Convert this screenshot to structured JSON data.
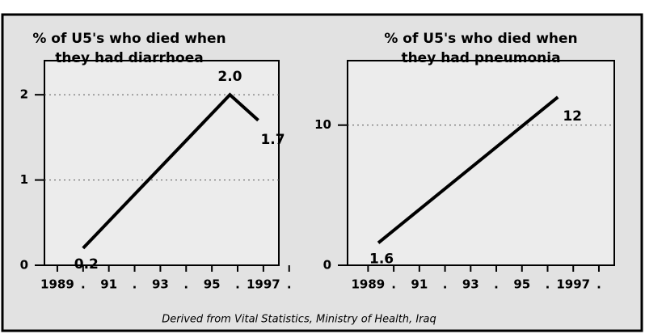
{
  "source": "Derived from Vital Statistics, Ministry of Health, Iraq",
  "chart_data": [
    {
      "type": "line",
      "title": [
        "% of U5's who died when",
        "they had diarrhoea"
      ],
      "x": [
        1990,
        1995.7,
        1996.8
      ],
      "series": [
        {
          "color": "#000000",
          "values": [
            0.2,
            2.0,
            1.7
          ],
          "value_labels": [
            "0.2",
            "2.0",
            "1.7"
          ]
        }
      ],
      "xlim": [
        1988.5,
        1997.6
      ],
      "xticks": [
        1989,
        {
          "value": 1990,
          "label": "."
        },
        {
          "value": 1991,
          "label": "91"
        },
        {
          "value": 1992,
          "label": "."
        },
        {
          "value": 1993,
          "label": "93"
        },
        {
          "value": 1994,
          "label": "."
        },
        {
          "value": 1995,
          "label": "95"
        },
        {
          "value": 1996,
          "label": "."
        },
        1997,
        {
          "value": 1998,
          "label": "."
        }
      ],
      "ylim": [
        0,
        2.4
      ],
      "yticks": [
        0,
        1,
        2
      ],
      "grid": true
    },
    {
      "type": "line",
      "title": [
        "% of U5's who died when",
        "they had pneumonia"
      ],
      "x": [
        1989.4,
        1996.4
      ],
      "series": [
        {
          "color": "#000000",
          "values": [
            1.6,
            12
          ]
        }
      ],
      "xlim": [
        1988.2,
        1998.6
      ],
      "xticks": [
        1989,
        {
          "value": 1990,
          "label": "."
        },
        {
          "value": 1991,
          "label": "91"
        },
        {
          "value": 1992,
          "label": "."
        },
        {
          "value": 1993,
          "label": "93"
        },
        {
          "value": 1994,
          "label": "."
        },
        {
          "value": 1995,
          "label": "95"
        },
        {
          "value": 1996,
          "label": "."
        },
        1997,
        {
          "value": 1998,
          "label": "."
        }
      ],
      "ylim": [
        0,
        14.6
      ],
      "yticks": [
        0,
        10
      ],
      "grid": true
    }
  ]
}
